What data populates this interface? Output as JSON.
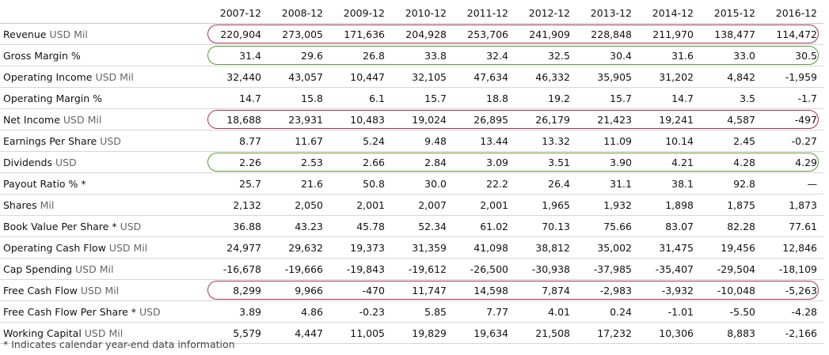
{
  "years": [
    "2007-12",
    "2008-12",
    "2009-12",
    "2010-12",
    "2011-12",
    "2012-12",
    "2013-12",
    "2014-12",
    "2015-12",
    "2016-12"
  ],
  "rows": [
    {
      "label": "Revenue",
      "unit": "USD Mil",
      "values": [
        "220,904",
        "273,005",
        "171,636",
        "204,928",
        "253,706",
        "241,909",
        "228,848",
        "211,970",
        "138,477",
        "114,472"
      ]
    },
    {
      "label": "Gross Margin %",
      "unit": "",
      "values": [
        "31.4",
        "29.6",
        "26.8",
        "33.8",
        "32.4",
        "32.5",
        "30.4",
        "31.6",
        "33.0",
        "30.5"
      ]
    },
    {
      "label": "Operating Income",
      "unit": "USD Mil",
      "values": [
        "32,440",
        "43,057",
        "10,447",
        "32,105",
        "47,634",
        "46,332",
        "35,905",
        "31,202",
        "4,842",
        "-1,959"
      ]
    },
    {
      "label": "Operating Margin %",
      "unit": "",
      "values": [
        "14.7",
        "15.8",
        "6.1",
        "15.7",
        "18.8",
        "19.2",
        "15.7",
        "14.7",
        "3.5",
        "-1.7"
      ]
    },
    {
      "label": "Net Income",
      "unit": "USD Mil",
      "values": [
        "18,688",
        "23,931",
        "10,483",
        "19,024",
        "26,895",
        "26,179",
        "21,423",
        "19,241",
        "4,587",
        "-497"
      ]
    },
    {
      "label": "Earnings Per Share",
      "unit": "USD",
      "values": [
        "8.77",
        "11.67",
        "5.24",
        "9.48",
        "13.44",
        "13.32",
        "11.09",
        "10.14",
        "2.45",
        "-0.27"
      ]
    },
    {
      "label": "Dividends",
      "unit": "USD",
      "values": [
        "2.26",
        "2.53",
        "2.66",
        "2.84",
        "3.09",
        "3.51",
        "3.90",
        "4.21",
        "4.28",
        "4.29"
      ]
    },
    {
      "label": "Payout Ratio % *",
      "unit": "",
      "values": [
        "25.7",
        "21.6",
        "50.8",
        "30.0",
        "22.2",
        "26.4",
        "31.1",
        "38.1",
        "92.8",
        "—"
      ]
    },
    {
      "label": "Shares",
      "unit": "Mil",
      "values": [
        "2,132",
        "2,050",
        "2,001",
        "2,007",
        "2,001",
        "1,965",
        "1,932",
        "1,898",
        "1,875",
        "1,873"
      ]
    },
    {
      "label": "Book Value Per Share *",
      "unit": "USD",
      "values": [
        "36.88",
        "43.23",
        "45.78",
        "52.34",
        "61.02",
        "70.13",
        "75.66",
        "83.07",
        "82.28",
        "77.61"
      ]
    },
    {
      "label": "Operating Cash Flow",
      "unit": "USD Mil",
      "values": [
        "24,977",
        "29,632",
        "19,373",
        "31,359",
        "41,098",
        "38,812",
        "35,002",
        "31,475",
        "19,456",
        "12,846"
      ]
    },
    {
      "label": "Cap Spending",
      "unit": "USD Mil",
      "values": [
        "-16,678",
        "-19,666",
        "-19,843",
        "-19,612",
        "-26,500",
        "-30,938",
        "-37,985",
        "-35,407",
        "-29,504",
        "-18,109"
      ]
    },
    {
      "label": "Free Cash Flow",
      "unit": "USD Mil",
      "values": [
        "8,299",
        "9,966",
        "-470",
        "11,747",
        "14,598",
        "7,874",
        "-2,983",
        "-3,932",
        "-10,048",
        "-5,263"
      ]
    },
    {
      "label": "Free Cash Flow Per Share *",
      "unit": "USD",
      "values": [
        "3.89",
        "4.86",
        "-0.23",
        "5.85",
        "7.77",
        "4.01",
        "0.24",
        "-1.01",
        "-5.50",
        "-4.28"
      ]
    },
    {
      "label": "Working Capital",
      "unit": "USD Mil",
      "values": [
        "5,579",
        "4,447",
        "11,005",
        "19,829",
        "19,634",
        "21,508",
        "17,232",
        "10,306",
        "8,883",
        "-2,166"
      ]
    }
  ],
  "highlight_colors": {
    "purple": "#a3325e",
    "green": "#5a9a3a"
  },
  "highlighted_rows": [
    {
      "row": "Revenue",
      "color": "purple"
    },
    {
      "row": "Gross Margin %",
      "color": "green"
    },
    {
      "row": "Net Income",
      "color": "purple"
    },
    {
      "row": "Dividends",
      "color": "green"
    },
    {
      "row": "Free Cash Flow",
      "color": "purple"
    }
  ],
  "footnote": "* Indicates calendar year-end data information"
}
